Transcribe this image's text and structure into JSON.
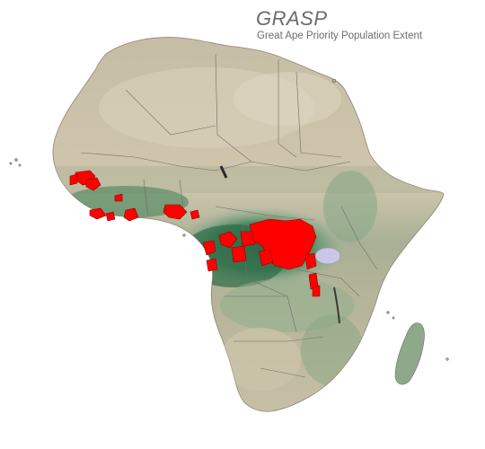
{
  "title": "GRASP",
  "subtitle": "Great Ape Priority Population Extent",
  "colors": {
    "background": "#ffffff",
    "desert": "#c8bfa6",
    "savanna": "#b9b598",
    "forest_light": "#7fa386",
    "forest_dark": "#2f6b48",
    "population": "#ff0000",
    "border": "#6d6d6d",
    "lake": "#c9c6e6"
  },
  "legend": {
    "priority_population": "red-fill"
  }
}
